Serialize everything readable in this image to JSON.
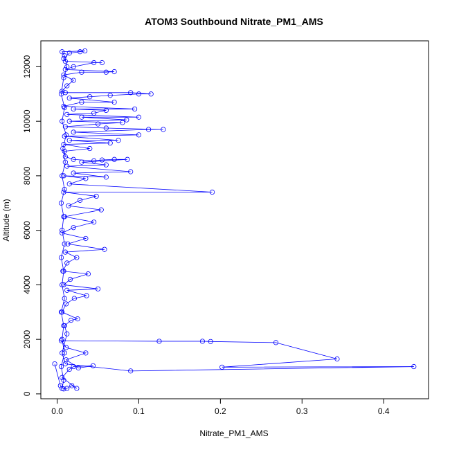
{
  "chart_data": {
    "type": "scatter",
    "title": "ATOM3 Southbound Nitrate_PM1_AMS",
    "xlabel": "Nitrate_PM1_AMS",
    "ylabel": "Altitude (m)",
    "xlim": [
      -0.02,
      0.455
    ],
    "ylim": [
      -180,
      12950
    ],
    "xticks": [
      0.0,
      0.1,
      0.2,
      0.3,
      0.4
    ],
    "xtick_labels": [
      "0.0",
      "0.1",
      "0.2",
      "0.3",
      "0.4"
    ],
    "yticks": [
      0,
      2000,
      4000,
      6000,
      8000,
      10000,
      12000
    ],
    "ytick_labels": [
      "0",
      "2000",
      "4000",
      "6000",
      "8000",
      "10000",
      "12000"
    ],
    "series": [
      {
        "color": "#0000ff",
        "marker": "open-circle",
        "connected": true,
        "points": [
          [
            -0.003,
            1100
          ],
          [
            0.004,
            300
          ],
          [
            0.008,
            180
          ],
          [
            0.012,
            200
          ],
          [
            0.018,
            300
          ],
          [
            0.024,
            200
          ],
          [
            0.006,
            600
          ],
          [
            0.015,
            900
          ],
          [
            0.02,
            1000
          ],
          [
            0.044,
            1030
          ],
          [
            0.026,
            950
          ],
          [
            0.011,
            1250
          ],
          [
            0.035,
            1500
          ],
          [
            0.011,
            1700
          ],
          [
            0.005,
            1950
          ],
          [
            0.125,
            1930
          ],
          [
            0.178,
            1930
          ],
          [
            0.188,
            1920
          ],
          [
            0.268,
            1880
          ],
          [
            0.343,
            1280
          ],
          [
            0.202,
            980
          ],
          [
            0.437,
            1000
          ],
          [
            0.09,
            840
          ],
          [
            0.01,
            1100
          ],
          [
            0.006,
            1500
          ],
          [
            0.012,
            2200
          ],
          [
            0.009,
            2500
          ],
          [
            0.017,
            2700
          ],
          [
            0.025,
            2750
          ],
          [
            0.006,
            3000
          ],
          [
            0.011,
            3300
          ],
          [
            0.021,
            3500
          ],
          [
            0.036,
            3600
          ],
          [
            0.012,
            3800
          ],
          [
            0.05,
            3850
          ],
          [
            0.008,
            4000
          ],
          [
            0.016,
            4200
          ],
          [
            0.038,
            4400
          ],
          [
            0.007,
            4500
          ],
          [
            0.012,
            4800
          ],
          [
            0.024,
            5000
          ],
          [
            0.01,
            5200
          ],
          [
            0.058,
            5300
          ],
          [
            0.013,
            5500
          ],
          [
            0.035,
            5700
          ],
          [
            0.006,
            5900
          ],
          [
            0.02,
            6100
          ],
          [
            0.045,
            6300
          ],
          [
            0.009,
            6500
          ],
          [
            0.054,
            6750
          ],
          [
            0.014,
            6900
          ],
          [
            0.028,
            7100
          ],
          [
            0.048,
            7250
          ],
          [
            0.008,
            7400
          ],
          [
            0.19,
            7400
          ],
          [
            0.015,
            7700
          ],
          [
            0.035,
            7900
          ],
          [
            0.008,
            8000
          ],
          [
            0.06,
            7950
          ],
          [
            0.02,
            8100
          ],
          [
            0.09,
            8150
          ],
          [
            0.012,
            8350
          ],
          [
            0.06,
            8400
          ],
          [
            0.03,
            8500
          ],
          [
            0.086,
            8600
          ],
          [
            0.07,
            8600
          ],
          [
            0.055,
            8580
          ],
          [
            0.045,
            8550
          ],
          [
            0.02,
            8600
          ],
          [
            0.01,
            8700
          ],
          [
            0.009,
            8900
          ],
          [
            0.04,
            9000
          ],
          [
            0.008,
            9150
          ],
          [
            0.065,
            9200
          ],
          [
            0.015,
            9300
          ],
          [
            0.075,
            9300
          ],
          [
            0.009,
            9450
          ],
          [
            0.1,
            9500
          ],
          [
            0.02,
            9600
          ],
          [
            0.112,
            9700
          ],
          [
            0.13,
            9700
          ],
          [
            0.06,
            9750
          ],
          [
            0.01,
            9800
          ],
          [
            0.05,
            9900
          ],
          [
            0.08,
            9950
          ],
          [
            0.015,
            10000
          ],
          [
            0.085,
            10050
          ],
          [
            0.03,
            10150
          ],
          [
            0.1,
            10150
          ],
          [
            0.012,
            10250
          ],
          [
            0.045,
            10300
          ],
          [
            0.06,
            10400
          ],
          [
            0.02,
            10450
          ],
          [
            0.095,
            10450
          ],
          [
            0.008,
            10550
          ],
          [
            0.03,
            10700
          ],
          [
            0.07,
            10700
          ],
          [
            0.015,
            10850
          ],
          [
            0.04,
            10900
          ],
          [
            0.065,
            10950
          ],
          [
            0.1,
            11000
          ],
          [
            0.115,
            11000
          ],
          [
            0.09,
            11050
          ],
          [
            0.01,
            11050
          ],
          [
            0.006,
            11100
          ],
          [
            0.012,
            11300
          ],
          [
            0.02,
            11500
          ],
          [
            0.008,
            11700
          ],
          [
            0.03,
            11800
          ],
          [
            0.06,
            11800
          ],
          [
            0.07,
            11820
          ],
          [
            0.01,
            11900
          ],
          [
            0.02,
            12000
          ],
          [
            0.045,
            12150
          ],
          [
            0.055,
            12150
          ],
          [
            0.01,
            12200
          ],
          [
            0.008,
            12300
          ],
          [
            0.015,
            12500
          ],
          [
            0.028,
            12550
          ],
          [
            0.034,
            12580
          ],
          [
            0.006,
            12550
          ],
          [
            0.009,
            12400
          ],
          [
            0.012,
            12000
          ],
          [
            0.008,
            11600
          ],
          [
            0.005,
            11000
          ],
          [
            0.009,
            10500
          ],
          [
            0.006,
            10000
          ],
          [
            0.011,
            9500
          ],
          [
            0.007,
            9000
          ],
          [
            0.01,
            8500
          ],
          [
            0.006,
            8000
          ],
          [
            0.009,
            7500
          ],
          [
            0.005,
            7000
          ],
          [
            0.008,
            6500
          ],
          [
            0.006,
            6000
          ],
          [
            0.009,
            5500
          ],
          [
            0.005,
            5000
          ],
          [
            0.008,
            4500
          ],
          [
            0.006,
            4000
          ],
          [
            0.009,
            3500
          ],
          [
            0.005,
            3000
          ],
          [
            0.008,
            2500
          ],
          [
            0.006,
            2000
          ],
          [
            0.009,
            1500
          ],
          [
            0.005,
            1000
          ],
          [
            0.008,
            500
          ],
          [
            0.006,
            200
          ]
        ]
      }
    ],
    "grid": false,
    "legend": "none"
  }
}
